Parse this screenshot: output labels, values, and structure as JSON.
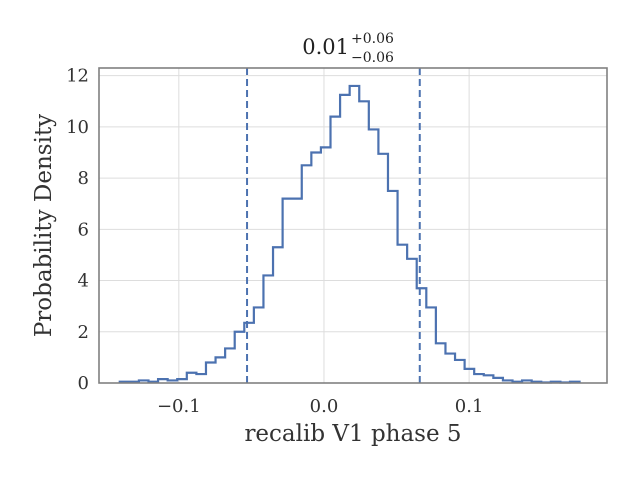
{
  "chart_data": {
    "type": "histogram",
    "title": {
      "value": "0.01",
      "upper": "+0.06",
      "lower": "−0.06"
    },
    "xlabel": "recalib V1 phase 5",
    "ylabel": "Probability Density",
    "xlim": [
      -0.155,
      0.195
    ],
    "ylim": [
      0,
      12.3
    ],
    "xticks": [
      -0.1,
      0.0,
      0.1
    ],
    "xtick_labels": [
      "−0.1",
      "0.0",
      "0.1"
    ],
    "yticks": [
      0,
      2,
      4,
      6,
      8,
      10,
      12
    ],
    "ytick_labels": [
      "0",
      "2",
      "4",
      "6",
      "8",
      "10",
      "12"
    ],
    "grid": true,
    "bin_edges": [
      -0.1407,
      -0.1341,
      -0.1275,
      -0.1209,
      -0.1143,
      -0.1077,
      -0.1011,
      -0.0945,
      -0.0879,
      -0.0813,
      -0.0747,
      -0.0681,
      -0.0615,
      -0.0549,
      -0.0483,
      -0.0417,
      -0.0351,
      -0.0285,
      -0.0219,
      -0.0153,
      -0.0087,
      -0.0021,
      0.0045,
      0.0111,
      0.0177,
      0.0243,
      0.0309,
      0.0375,
      0.0441,
      0.0507,
      0.0573,
      0.0639,
      0.0705,
      0.0771,
      0.0837,
      0.0903,
      0.0969,
      0.1035,
      0.1101,
      0.1167,
      0.1233,
      0.1299,
      0.1365,
      0.1431,
      0.1497,
      0.1563,
      0.1629,
      0.1695,
      0.1761
    ],
    "densities": [
      0.05,
      0.05,
      0.1,
      0.05,
      0.15,
      0.1,
      0.15,
      0.4,
      0.35,
      0.8,
      1.0,
      1.35,
      2.0,
      2.35,
      2.95,
      4.2,
      5.3,
      7.2,
      7.2,
      8.5,
      9.0,
      9.2,
      10.4,
      11.25,
      11.6,
      11.0,
      9.9,
      8.95,
      7.5,
      5.4,
      4.85,
      3.7,
      2.95,
      1.55,
      1.15,
      0.9,
      0.55,
      0.35,
      0.3,
      0.2,
      0.1,
      0.05,
      0.1,
      0.05,
      0.02,
      0.05,
      0.02,
      0.05
    ],
    "credible_interval": [
      -0.053,
      0.066
    ],
    "colors": {
      "line": "#4c72b0",
      "grid": "#dddddd",
      "frame": "#808080",
      "background": "#ffffff"
    }
  }
}
